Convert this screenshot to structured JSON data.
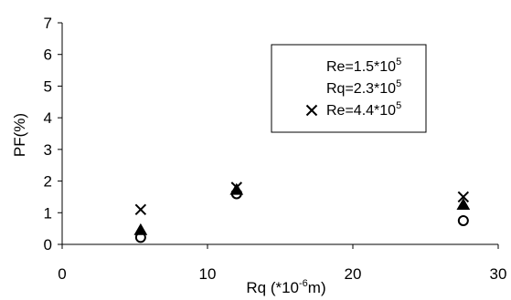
{
  "chart_data": {
    "type": "scatter",
    "xlabel": {
      "base": "Rq (*10",
      "sup": "-6",
      "tail": "m)"
    },
    "ylabel": "PF(%)",
    "xlim": [
      0,
      30
    ],
    "ylim": [
      0,
      7
    ],
    "xticks": [
      "0",
      "10",
      "20",
      "30"
    ],
    "yticks": [
      "0",
      "1",
      "2",
      "3",
      "4",
      "5",
      "6",
      "7"
    ],
    "grid": false,
    "legend_position": "top-right",
    "series": [
      {
        "legend": {
          "base": "Re=1.5*10",
          "sup": "5"
        },
        "marker": "open-circle",
        "points": [
          [
            5.4,
            0.22
          ],
          [
            12.0,
            1.6
          ],
          [
            27.6,
            0.75
          ]
        ]
      },
      {
        "legend": {
          "base": "Rq=2.3*10",
          "sup": "5"
        },
        "marker": "triangle",
        "points": [
          [
            5.4,
            0.45
          ],
          [
            12.0,
            1.72
          ],
          [
            27.6,
            1.25
          ]
        ]
      },
      {
        "legend": {
          "base": "Re=4.4*10",
          "sup": "5"
        },
        "marker": "x",
        "points": [
          [
            5.4,
            1.1
          ],
          [
            12.0,
            1.8
          ],
          [
            27.6,
            1.5
          ]
        ]
      }
    ]
  }
}
